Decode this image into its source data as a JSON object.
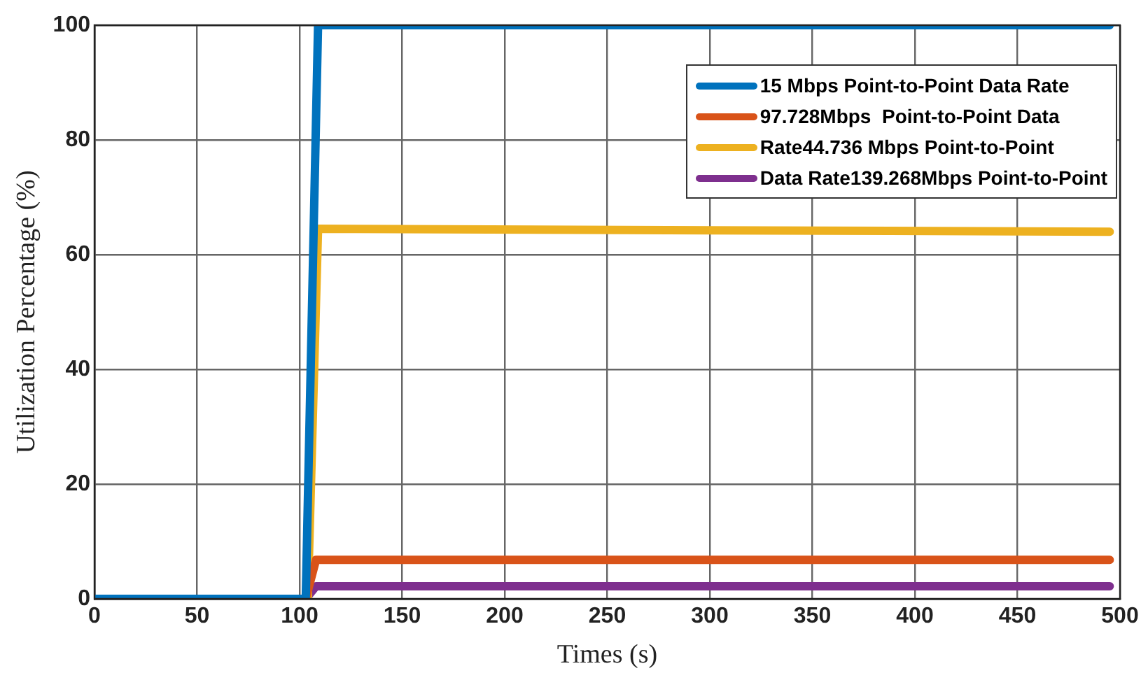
{
  "chart_data": {
    "type": "line",
    "xlabel": "Times (s)",
    "ylabel": "Utilization Percentage (%)",
    "xlim": [
      0,
      500
    ],
    "xticks": [
      0,
      50,
      100,
      150,
      200,
      250,
      300,
      350,
      400,
      450,
      500
    ],
    "ylim": [
      0,
      100
    ],
    "yticks": [
      0,
      20,
      40,
      60,
      80,
      100
    ],
    "grid": true,
    "legend": "top right",
    "marker": "none",
    "line_style": "solid",
    "series": [
      {
        "name": "15 Mbps Point-to-Point Data Rate",
        "color": "#0072bd",
        "x": [
          0,
          103,
          109,
          495
        ],
        "values": [
          0,
          0,
          100,
          100
        ]
      },
      {
        "name": "97.728Mbps  Point-to-Point Data",
        "color": "#d95319",
        "x": [
          0,
          103,
          108,
          495
        ],
        "values": [
          0,
          0,
          6.8,
          6.8
        ]
      },
      {
        "name": "Rate44.736 Mbps Point-to-Point",
        "color": "#edb120",
        "x": [
          0,
          104,
          109,
          495
        ],
        "values": [
          0,
          0,
          64.5,
          64
        ]
      },
      {
        "name": "Data Rate139.268Mbps Point-to-Point",
        "color": "#7e2f8e",
        "x": [
          0,
          103,
          108,
          495
        ],
        "values": [
          0,
          0,
          2.2,
          2.2
        ]
      }
    ]
  }
}
